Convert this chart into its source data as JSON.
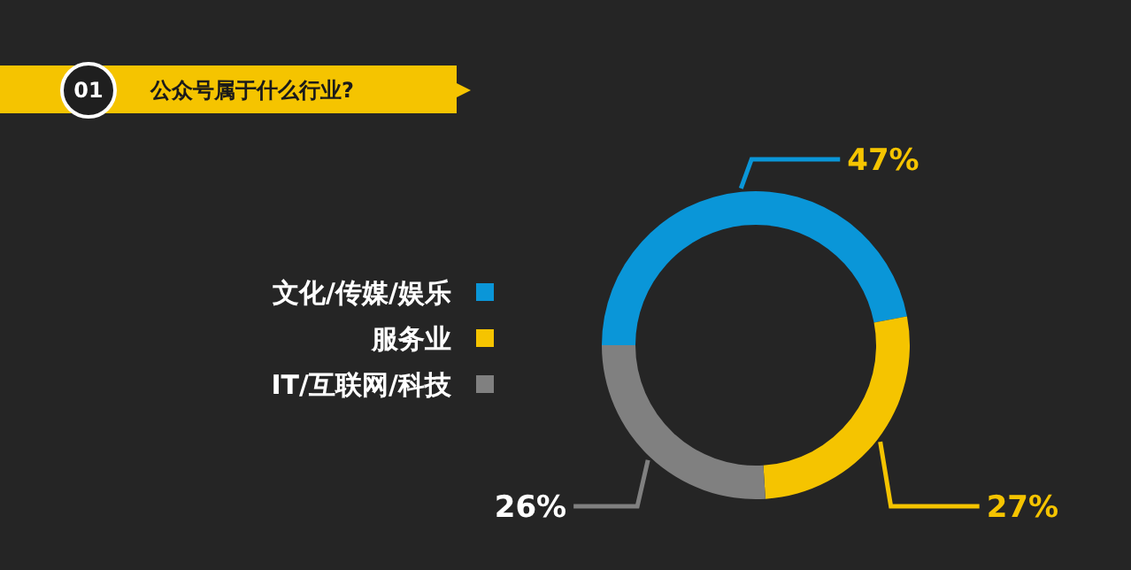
{
  "chart_data": {
    "type": "donut",
    "title": "公众号属于什么行业?",
    "annotations": [
      "01"
    ],
    "categories": [
      "文化/传媒/娱乐",
      "服务业",
      "IT/互联网/科技"
    ],
    "values": [
      47,
      27,
      26
    ],
    "colors": [
      "#0a96d8",
      "#f5c400",
      "#808080"
    ],
    "value_labels": [
      "47%",
      "27%",
      "26%"
    ],
    "legend": "left"
  }
}
